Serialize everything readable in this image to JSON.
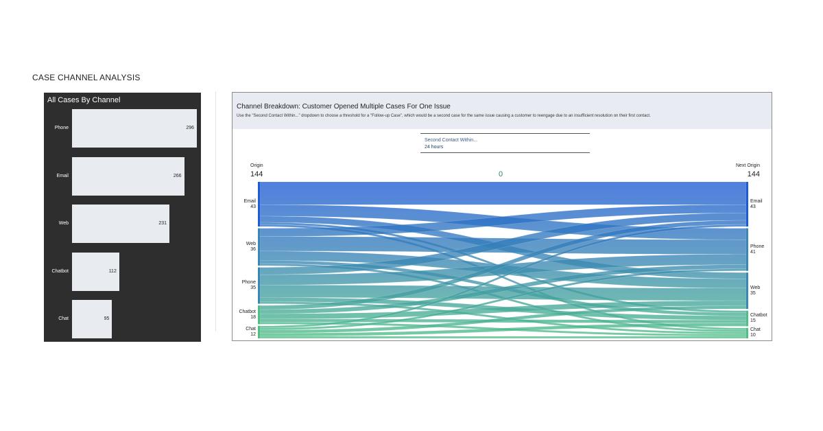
{
  "page": {
    "title": "CASE CHANNEL ANALYSIS"
  },
  "left_panel": {
    "title": "All Cases By Channel"
  },
  "right_panel": {
    "title": "Channel Breakdown: Customer Opened Multiple Cases For One Issue",
    "description": "Use the \"Second Contact Within...\" dropdown to choose a threshold for a \"Follow-up Case\", which would be a second case for the same issue causing a customer to reengage due to an insufficient resolution on their first contact.",
    "dropdown": {
      "label": "Second Contact Within...",
      "value": "24 hours"
    },
    "origin_header": "Origin",
    "next_origin_header": "Next Origin",
    "origin_total": "144",
    "next_origin_total": "144",
    "center_value": "0"
  },
  "chart_data": [
    {
      "type": "bar",
      "orientation": "horizontal",
      "title": "All Cases By Channel",
      "categories": [
        "Phone",
        "Email",
        "Web",
        "Chatbot",
        "Chat"
      ],
      "values": [
        296,
        266,
        231,
        112,
        95
      ],
      "xlim": [
        0,
        296
      ],
      "bar_color": "#e8ecf1",
      "background": "#2e2e2e"
    },
    {
      "type": "sankey",
      "title": "Channel Breakdown: Customer Opened Multiple Cases For One Issue",
      "source_header": "Origin",
      "target_header": "Next Origin",
      "source_total": 144,
      "target_total": 144,
      "sources": [
        {
          "name": "Email",
          "value": 43
        },
        {
          "name": "Web",
          "value": 36
        },
        {
          "name": "Phone",
          "value": 35
        },
        {
          "name": "Chatbot",
          "value": 18
        },
        {
          "name": "Chat",
          "value": 12
        }
      ],
      "targets": [
        {
          "name": "Email",
          "value": 43
        },
        {
          "name": "Phone",
          "value": 41
        },
        {
          "name": "Web",
          "value": 35
        },
        {
          "name": "Chatbot",
          "value": 15
        },
        {
          "name": "Chat",
          "value": 10
        }
      ],
      "links": [
        {
          "source": "Email",
          "target": "Email",
          "value": 22
        },
        {
          "source": "Email",
          "target": "Phone",
          "value": 11
        },
        {
          "source": "Email",
          "target": "Web",
          "value": 6
        },
        {
          "source": "Email",
          "target": "Chatbot",
          "value": 2
        },
        {
          "source": "Email",
          "target": "Chat",
          "value": 2
        },
        {
          "source": "Web",
          "target": "Email",
          "value": 8
        },
        {
          "source": "Web",
          "target": "Phone",
          "value": 14
        },
        {
          "source": "Web",
          "target": "Web",
          "value": 9
        },
        {
          "source": "Web",
          "target": "Chatbot",
          "value": 3
        },
        {
          "source": "Web",
          "target": "Chat",
          "value": 2
        },
        {
          "source": "Phone",
          "target": "Email",
          "value": 7
        },
        {
          "source": "Phone",
          "target": "Phone",
          "value": 10
        },
        {
          "source": "Phone",
          "target": "Web",
          "value": 12
        },
        {
          "source": "Phone",
          "target": "Chatbot",
          "value": 4
        },
        {
          "source": "Phone",
          "target": "Chat",
          "value": 2
        },
        {
          "source": "Chatbot",
          "target": "Email",
          "value": 4
        },
        {
          "source": "Chatbot",
          "target": "Phone",
          "value": 4
        },
        {
          "source": "Chatbot",
          "target": "Web",
          "value": 5
        },
        {
          "source": "Chatbot",
          "target": "Chatbot",
          "value": 3
        },
        {
          "source": "Chatbot",
          "target": "Chat",
          "value": 2
        },
        {
          "source": "Chat",
          "target": "Email",
          "value": 2
        },
        {
          "source": "Chat",
          "target": "Phone",
          "value": 2
        },
        {
          "source": "Chat",
          "target": "Web",
          "value": 3
        },
        {
          "source": "Chat",
          "target": "Chatbot",
          "value": 3
        },
        {
          "source": "Chat",
          "target": "Chat",
          "value": 2
        }
      ],
      "colors": {
        "top": "#1f5bd6",
        "middle": "#3a86b4",
        "bottom": "#4fbf86",
        "node_bar": "#1f5bd6"
      }
    }
  ]
}
